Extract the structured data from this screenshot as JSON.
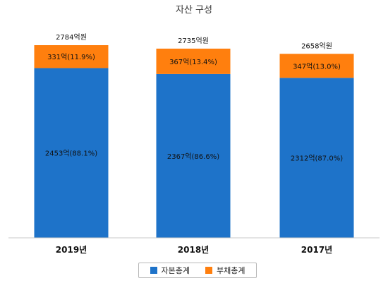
{
  "chart_data": {
    "type": "bar",
    "stacked": true,
    "title": "자산 구성",
    "categories": [
      "2019년",
      "2018년",
      "2017년"
    ],
    "series": [
      {
        "name": "자본총계",
        "values": [
          2453,
          2367,
          2312
        ],
        "labels": [
          "2453억(88.1%)",
          "2367억(86.6%)",
          "2312억(87.0%)"
        ],
        "color": "#1e73c9"
      },
      {
        "name": "부채총계",
        "values": [
          331,
          367,
          347
        ],
        "labels": [
          "331억(11.9%)",
          "367억(13.4%)",
          "347억(13.0%)"
        ],
        "color": "#ff7f0e"
      }
    ],
    "totals": [
      "2784억원",
      "2735억원",
      "2658억원"
    ],
    "ylim": [
      0,
      2784
    ],
    "grid": false,
    "legend_position": "bottom"
  }
}
